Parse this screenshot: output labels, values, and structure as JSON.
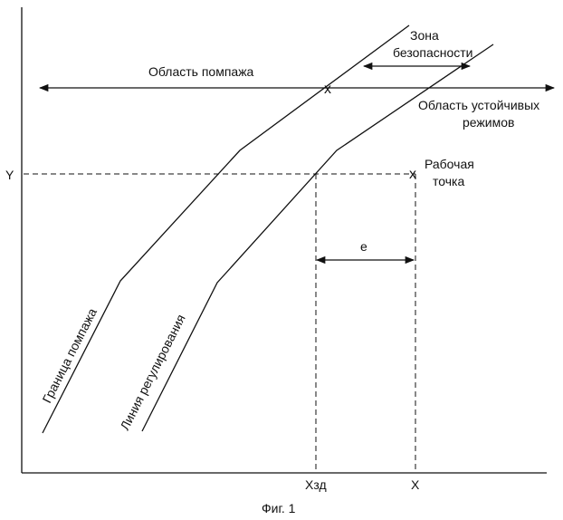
{
  "figure": {
    "caption": "Фиг. 1",
    "axis": {
      "y_label": "Y",
      "x_label": "X"
    },
    "regions": {
      "surge_area": "Область помпажа",
      "stable_area_line1": "Область устойчивых",
      "stable_area_line2": "режимов",
      "safety_zone_line1": "Зона",
      "safety_zone_line2": "безопасности"
    },
    "operating_point": {
      "line1": "Рабочая",
      "line2": "точка"
    },
    "curves": {
      "surge_boundary": "Граница помпажа",
      "control_line": "Линия регулирования"
    },
    "markers": {
      "setpoint_x": "Хзд",
      "deviation": "е",
      "cross_mark": "x"
    },
    "colors": {
      "ink": "#111111",
      "background": "#ffffff"
    }
  }
}
